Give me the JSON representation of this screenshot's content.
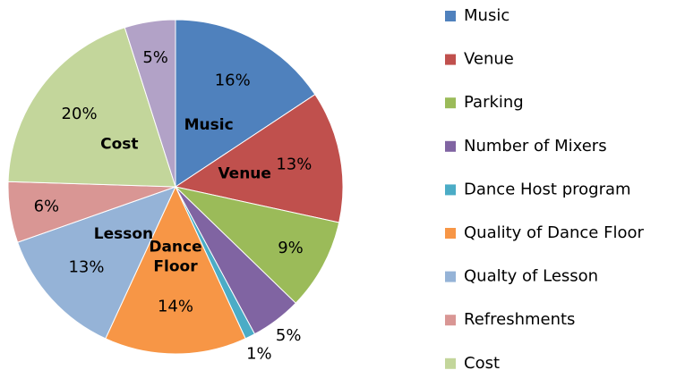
{
  "chart_data": {
    "type": "pie",
    "categories": [
      "Music",
      "Venue",
      "Parking",
      "Number of Mixers",
      "Dance Host program",
      "Quality of Dance Floor",
      "Qualty of Lesson",
      "Refreshments",
      "Cost",
      null
    ],
    "values": [
      16,
      13,
      9,
      5,
      1,
      14,
      13,
      6,
      20,
      5
    ],
    "value_labels": [
      "16%",
      "13%",
      "9%",
      "5%",
      "1%",
      "14%",
      "13%",
      "6%",
      "20%",
      "5%"
    ],
    "slice_labels": [
      "Music",
      "Venue",
      null,
      null,
      null,
      "Dance Floor",
      "Lesson",
      null,
      "Cost",
      null
    ],
    "colors": [
      "#4f81bd",
      "#c0504d",
      "#9bbb59",
      "#8064a2",
      "#4bacc6",
      "#f79646",
      "#95b3d7",
      "#d99694",
      "#c3d69b",
      "#b2a2c7"
    ],
    "legend": "right"
  }
}
